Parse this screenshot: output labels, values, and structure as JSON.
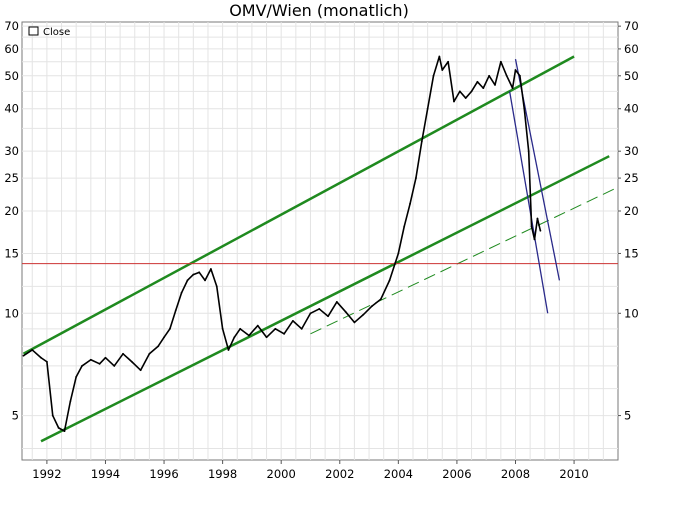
{
  "chart_data": {
    "type": "line",
    "title": "OMV/Wien (monatlich)",
    "y_scale": "log",
    "ylim": [
      3.7,
      72
    ],
    "xlim": [
      1991.15,
      2011.5
    ],
    "y_ticks": [
      5,
      10,
      15,
      20,
      25,
      30,
      40,
      50,
      60,
      70
    ],
    "x_ticks": [
      1992,
      1994,
      1996,
      1998,
      2000,
      2002,
      2004,
      2006,
      2008,
      2010
    ],
    "grid": true,
    "legend": {
      "position": "top-left",
      "entries": [
        "Close"
      ]
    },
    "series": [
      {
        "name": "Close",
        "color": "#000000",
        "x": [
          1991.2,
          1991.5,
          1991.8,
          1992.0,
          1992.2,
          1992.4,
          1992.6,
          1992.8,
          1993.0,
          1993.2,
          1993.5,
          1993.8,
          1994.0,
          1994.3,
          1994.6,
          1994.9,
          1995.2,
          1995.5,
          1995.8,
          1996.0,
          1996.2,
          1996.4,
          1996.6,
          1996.8,
          1997.0,
          1997.2,
          1997.4,
          1997.6,
          1997.8,
          1998.0,
          1998.2,
          1998.4,
          1998.6,
          1998.9,
          1999.2,
          1999.5,
          1999.8,
          2000.1,
          2000.4,
          2000.7,
          2001.0,
          2001.3,
          2001.6,
          2001.9,
          2002.2,
          2002.5,
          2002.8,
          2003.1,
          2003.4,
          2003.7,
          2004.0,
          2004.2,
          2004.4,
          2004.6,
          2004.8,
          2005.0,
          2005.2,
          2005.4,
          2005.5,
          2005.7,
          2005.9,
          2006.1,
          2006.3,
          2006.5,
          2006.7,
          2006.9,
          2007.1,
          2007.3,
          2007.5,
          2007.7,
          2007.9,
          2008.0,
          2008.15,
          2008.3,
          2008.45,
          2008.55,
          2008.65,
          2008.75,
          2008.85
        ],
        "values": [
          7.5,
          7.8,
          7.4,
          7.2,
          5.0,
          4.6,
          4.5,
          5.5,
          6.5,
          7.0,
          7.3,
          7.1,
          7.4,
          7.0,
          7.6,
          7.2,
          6.8,
          7.6,
          8.0,
          8.5,
          9.0,
          10.2,
          11.5,
          12.5,
          13.0,
          13.2,
          12.5,
          13.5,
          12.0,
          9.0,
          7.8,
          8.5,
          9.0,
          8.6,
          9.2,
          8.5,
          9.0,
          8.7,
          9.5,
          9.0,
          10.0,
          10.3,
          9.8,
          10.8,
          10.1,
          9.4,
          9.9,
          10.5,
          11.0,
          12.5,
          15.0,
          18.0,
          21.0,
          25.0,
          32.0,
          40.0,
          50.0,
          57.0,
          52.0,
          55.0,
          42.0,
          45.0,
          43.0,
          45.0,
          48.0,
          46.0,
          50.0,
          47.0,
          55.0,
          50.0,
          46.0,
          52.0,
          50.0,
          40.0,
          30.0,
          18.0,
          16.5,
          19.0,
          17.5
        ]
      }
    ],
    "trendlines": [
      {
        "name": "upper-channel",
        "color": "#1f8a1f",
        "style": "solid",
        "x": [
          1991.2,
          2010.0
        ],
        "values": [
          7.6,
          57.0
        ]
      },
      {
        "name": "lower-channel",
        "color": "#1f8a1f",
        "style": "solid",
        "x": [
          1991.8,
          2011.2
        ],
        "values": [
          4.2,
          29.0
        ]
      },
      {
        "name": "dashed-support",
        "color": "#1f8a1f",
        "style": "dashed",
        "x": [
          2001.0,
          2011.5
        ],
        "values": [
          8.7,
          23.5
        ]
      },
      {
        "name": "resistance-level",
        "color": "#cc3333",
        "style": "solid",
        "x": [
          1991.15,
          2011.5
        ],
        "values": [
          14.0,
          14.0
        ]
      },
      {
        "name": "down-trend-1",
        "color": "#2a2a8a",
        "style": "solid",
        "x": [
          2007.8,
          2009.1
        ],
        "values": [
          45.0,
          10.0
        ]
      },
      {
        "name": "down-trend-2",
        "color": "#2a2a8a",
        "style": "solid",
        "x": [
          2008.0,
          2009.5
        ],
        "values": [
          56.0,
          12.5
        ]
      }
    ]
  }
}
